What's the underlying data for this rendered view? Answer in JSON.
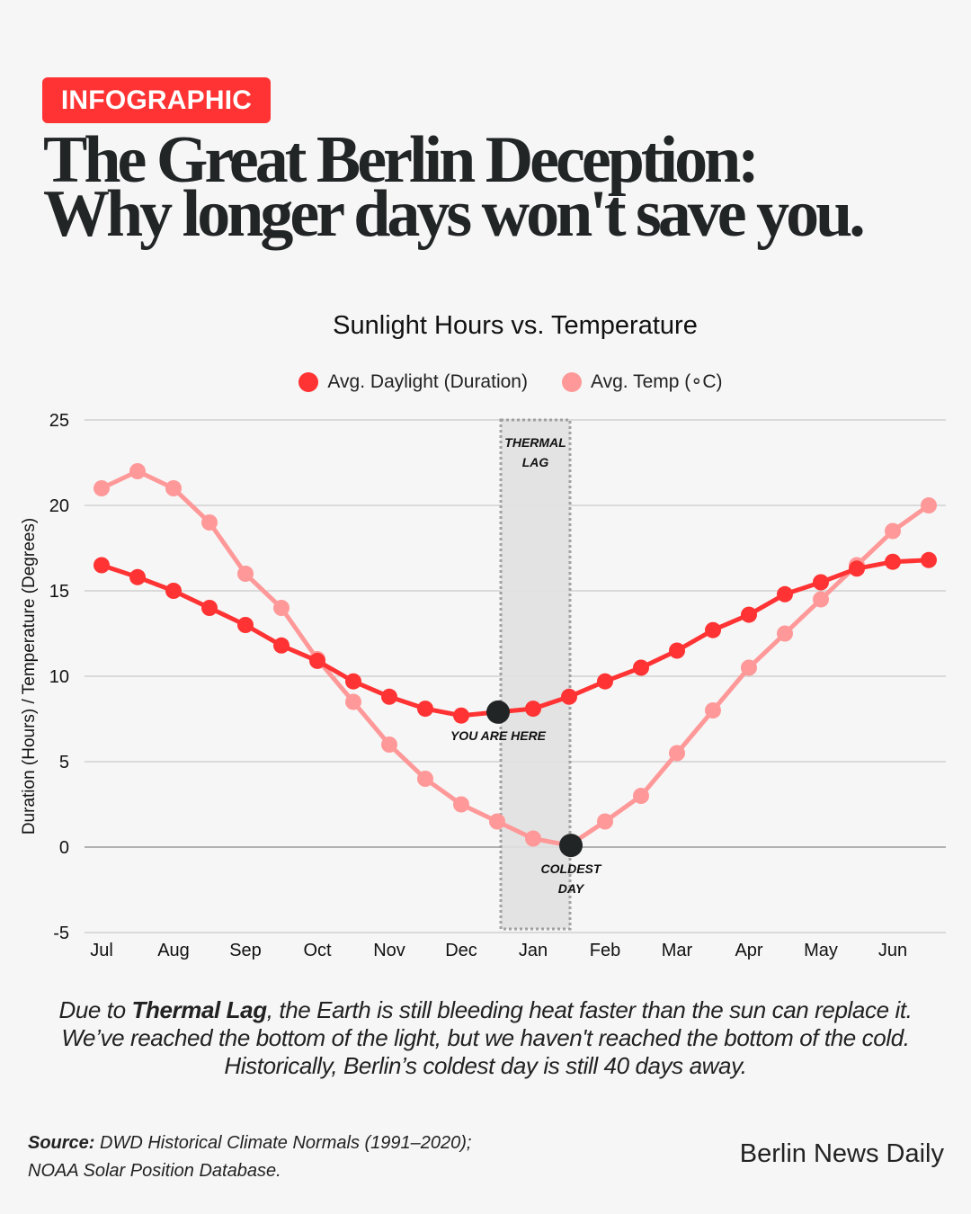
{
  "badge": {
    "label": "INFOGRAPHIC",
    "color": "#ff3333"
  },
  "headline": {
    "line1": "The Great Berlin Deception:",
    "line2": "Why longer days won't save you."
  },
  "chart_data": {
    "type": "line",
    "title": "Sunlight Hours vs. Temperature",
    "xlabel": "",
    "ylabel": "Duration (Hours) / Temperature (Degrees)",
    "ylim": [
      -5,
      25
    ],
    "yticks": [
      25,
      20,
      15,
      10,
      5,
      0,
      -5
    ],
    "grid": true,
    "legend_position": "top",
    "x_tick_labels": [
      "Jul",
      "Aug",
      "Sep",
      "Oct",
      "Nov",
      "Dec",
      "Jan",
      "Feb",
      "Mar",
      "Apr",
      "May",
      "Jun"
    ],
    "x": [
      "Jul",
      "Jul (late)",
      "Aug",
      "Aug (late)",
      "Sep",
      "Sep (late)",
      "Oct",
      "Oct (late)",
      "Nov",
      "Nov (late)",
      "Dec",
      "Dec (late)",
      "Jan",
      "Jan (late)",
      "Feb",
      "Feb (late)",
      "Mar",
      "Mar (late)",
      "Apr",
      "Apr (late)",
      "May",
      "May (late)",
      "Jun",
      "Jun (late)"
    ],
    "series": [
      {
        "name": "Avg. Daylight (Duration)",
        "color": "#ff3333",
        "values": [
          16.5,
          15.8,
          15.0,
          14.0,
          13.0,
          11.8,
          10.9,
          9.7,
          8.8,
          8.1,
          7.7,
          7.9,
          8.1,
          8.8,
          9.7,
          10.5,
          11.5,
          12.7,
          13.6,
          14.8,
          15.5,
          16.3,
          16.7,
          16.8
        ]
      },
      {
        "name": "Avg. Temp (∘C)",
        "color": "#ff9999",
        "values": [
          21.0,
          22.0,
          21.0,
          19.0,
          16.0,
          14.0,
          11.0,
          8.5,
          6.0,
          4.0,
          2.5,
          1.5,
          0.5,
          0.1,
          1.5,
          3.0,
          5.5,
          8.0,
          10.5,
          12.5,
          14.5,
          16.5,
          18.5,
          20.0
        ]
      }
    ],
    "annotations": [
      {
        "text": "THERMAL LAG",
        "type": "shaded-band",
        "x_start_index": 11,
        "x_end_index": 13
      },
      {
        "text": "YOU ARE HERE",
        "series": 0,
        "index": 11,
        "value": 7.9
      },
      {
        "text": "COLDEST DAY",
        "series": 1,
        "index": 13,
        "value": 0.1
      }
    ]
  },
  "annotation_labels": {
    "band_line1": "THERMAL",
    "band_line2": "LAG",
    "you_are_here": "YOU ARE HERE",
    "coldest_line1": "COLDEST",
    "coldest_line2": "DAY"
  },
  "caption": {
    "pre": "Due to ",
    "bold": "Thermal Lag",
    "line1_rest": ", the Earth is still bleeding heat faster than the sun can replace it.",
    "line2": "We’ve reached the bottom of the light, but we haven't reached the bottom of the cold.",
    "line3": "Historically, Berlin’s coldest day is still 40 days away."
  },
  "source": {
    "label": "Source:",
    "line1": " DWD Historical Climate Normals (1991–2020);",
    "line2": "NOAA Solar Position Database."
  },
  "brand": "Berlin News Daily",
  "colors": {
    "daylight": "#ff3333",
    "temp": "#ff9999",
    "marker": "#222526",
    "band": "#e4e4e4"
  }
}
